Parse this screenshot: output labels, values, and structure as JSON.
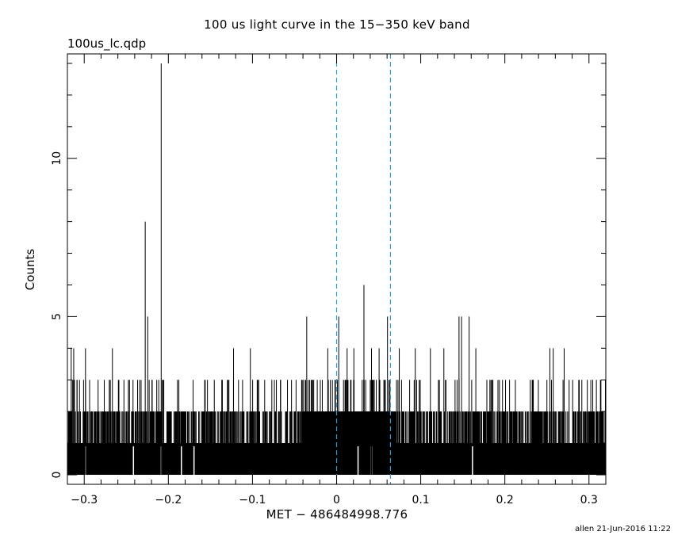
{
  "title": "100 us light curve in the 15−350 keV band",
  "subtitle": "100us_lc.qdp",
  "footer": "allen 21-Jun-2016 11:22",
  "chart_data": {
    "type": "line",
    "drawstyle": "steps",
    "title": "100 us light curve in the 15−350 keV band",
    "xlabel": "MET − 486484998.776",
    "ylabel": "Counts",
    "xlim": [
      -0.32,
      0.32
    ],
    "ylim": [
      -0.3,
      13.3
    ],
    "x_ticks": [
      -0.3,
      -0.2,
      -0.1,
      0,
      0.1,
      0.2,
      0.3
    ],
    "x_tick_labels": [
      "−0.3",
      "−0.2",
      "−0.1",
      "0",
      "0.1",
      "0.2",
      "0.3"
    ],
    "y_ticks": [
      0,
      5,
      10
    ],
    "y_tick_labels": [
      "0",
      "5",
      "10"
    ],
    "bin_width": 0.0001,
    "vertical_lines": [
      {
        "x": 0.0,
        "style": "dashed",
        "color": "#3399dd"
      },
      {
        "x": 0.064,
        "style": "dashed",
        "color": "#3399dd"
      }
    ],
    "spikes": [
      {
        "x": -0.3155,
        "y": 4
      },
      {
        "x": -0.3125,
        "y": 4
      },
      {
        "x": -0.3085,
        "y": 3
      },
      {
        "x": -0.2985,
        "y": 4
      },
      {
        "x": -0.2835,
        "y": 3
      },
      {
        "x": -0.2665,
        "y": 4
      },
      {
        "x": -0.2475,
        "y": 3
      },
      {
        "x": -0.2275,
        "y": 8
      },
      {
        "x": -0.2245,
        "y": 5
      },
      {
        "x": -0.2195,
        "y": 3
      },
      {
        "x": -0.2085,
        "y": 13
      },
      {
        "x": -0.1875,
        "y": 3
      },
      {
        "x": -0.1535,
        "y": 3
      },
      {
        "x": -0.1365,
        "y": 3
      },
      {
        "x": -0.1225,
        "y": 4
      },
      {
        "x": -0.1025,
        "y": 4
      },
      {
        "x": -0.0855,
        "y": 3
      },
      {
        "x": -0.0665,
        "y": 3
      },
      {
        "x": -0.0355,
        "y": 5
      },
      {
        "x": -0.0105,
        "y": 4
      },
      {
        "x": 0.0025,
        "y": 5
      },
      {
        "x": 0.0125,
        "y": 4
      },
      {
        "x": 0.0205,
        "y": 4
      },
      {
        "x": 0.0325,
        "y": 6
      },
      {
        "x": 0.0415,
        "y": 4
      },
      {
        "x": 0.0505,
        "y": 4
      },
      {
        "x": 0.0605,
        "y": 5
      },
      {
        "x": 0.0745,
        "y": 4
      },
      {
        "x": 0.0935,
        "y": 4
      },
      {
        "x": 0.1115,
        "y": 4
      },
      {
        "x": 0.1275,
        "y": 4
      },
      {
        "x": 0.1455,
        "y": 5
      },
      {
        "x": 0.1485,
        "y": 5
      },
      {
        "x": 0.1575,
        "y": 5
      },
      {
        "x": 0.1655,
        "y": 4
      },
      {
        "x": 0.1835,
        "y": 3
      },
      {
        "x": 0.2125,
        "y": 3
      },
      {
        "x": 0.2325,
        "y": 3
      },
      {
        "x": 0.2535,
        "y": 4
      },
      {
        "x": 0.2575,
        "y": 4
      },
      {
        "x": 0.2705,
        "y": 4
      },
      {
        "x": 0.2915,
        "y": 3
      },
      {
        "x": 0.3045,
        "y": 3
      },
      {
        "x": 0.3195,
        "y": 3
      }
    ]
  }
}
